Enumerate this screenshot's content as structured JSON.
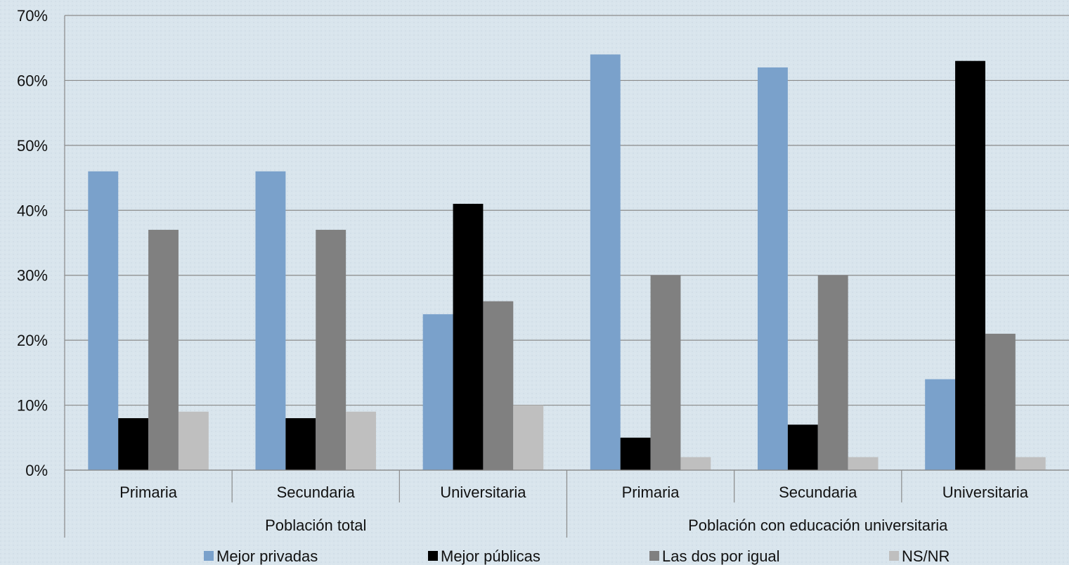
{
  "chart_data": {
    "type": "bar",
    "title": "",
    "xlabel": "",
    "ylabel": "",
    "ylim": [
      0,
      70
    ],
    "yticks": [
      "0%",
      "10%",
      "20%",
      "30%",
      "40%",
      "50%",
      "60%",
      "70%"
    ],
    "grid": true,
    "legend_position": "bottom",
    "groups": [
      {
        "label": "Población total",
        "categories": [
          "Primaria",
          "Secundaria",
          "Universitaria"
        ]
      },
      {
        "label": "Población con educación universitaria",
        "categories": [
          "Primaria",
          "Secundaria",
          "Universitaria"
        ]
      }
    ],
    "categories": [
      "Primaria",
      "Secundaria",
      "Universitaria",
      "Primaria",
      "Secundaria",
      "Universitaria"
    ],
    "series": [
      {
        "name": "Mejor privadas",
        "color": "#7aa1cb",
        "values": [
          46,
          46,
          24,
          64,
          62,
          14
        ]
      },
      {
        "name": "Mejor públicas",
        "color": "#000000",
        "values": [
          8,
          8,
          41,
          5,
          7,
          63
        ]
      },
      {
        "name": "Las dos por igual",
        "color": "#808080",
        "values": [
          37,
          37,
          26,
          30,
          30,
          21
        ]
      },
      {
        "name": "NS/NR",
        "color": "#bfbfbf",
        "values": [
          9,
          9,
          10,
          2,
          2,
          2
        ]
      }
    ]
  }
}
